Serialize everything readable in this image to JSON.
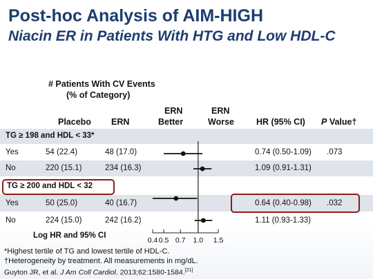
{
  "slide": {
    "title": "Post-hoc Analysis of AIM-HIGH",
    "subtitle": "Niacin ER in Patients With HTG and Low HDL-C"
  },
  "table": {
    "events_header_line1": "# Patients With CV Events",
    "events_header_line2": "(% of Category)",
    "col_placebo": "Placebo",
    "col_ern": "ERN",
    "col_ern_better_1": "ERN",
    "col_ern_better_2": "Better",
    "col_ern_worse_1": "ERN",
    "col_ern_worse_2": "Worse",
    "col_hr": "HR (95% CI)",
    "col_p_prefix": "P",
    "col_p_suffix": " Value†"
  },
  "groups": [
    {
      "label": "TG ≥ 198 and HDL < 33*",
      "rows": [
        {
          "label": "Yes",
          "placebo": "54 (22.4)",
          "ern": "48 (17.0)",
          "hr_text": "0.74 (0.50-1.09)",
          "p": ".073"
        },
        {
          "label": "No",
          "placebo": "220 (15.1)",
          "ern": "234 (16.3)",
          "hr_text": "1.09 (0.91-1.31)",
          "p": ""
        }
      ]
    },
    {
      "label": "TG ≥ 200 and HDL < 32",
      "rows": [
        {
          "label": "Yes",
          "placebo": "50 (25.0)",
          "ern": "40 (16.7)",
          "hr_text": "0.64 (0.40-0.98)",
          "p": ".032"
        },
        {
          "label": "No",
          "placebo": "224 (15.0)",
          "ern": "242 (16.2)",
          "hr_text": "1.11 (0.93-1.33)",
          "p": ""
        }
      ]
    }
  ],
  "chart_data": {
    "type": "forest",
    "xlabel": "Log HR and 95% CI",
    "x_scale": "log",
    "xlim": [
      0.4,
      1.5
    ],
    "reference_line": 1.0,
    "ticks": [
      0.4,
      0.5,
      0.7,
      1.0,
      1.5
    ],
    "tick_labels": [
      "0.4",
      "0.5",
      "0.7",
      "1.0",
      "1.5"
    ],
    "points": [
      {
        "group": "TG ≥ 198 and HDL < 33*",
        "subgroup": "Yes",
        "hr": 0.74,
        "ci": [
          0.5,
          1.09
        ]
      },
      {
        "group": "TG ≥ 198 and HDL < 33*",
        "subgroup": "No",
        "hr": 1.09,
        "ci": [
          0.91,
          1.31
        ]
      },
      {
        "group": "TG ≥ 200 and HDL < 32",
        "subgroup": "Yes",
        "hr": 0.64,
        "ci": [
          0.4,
          0.98
        ]
      },
      {
        "group": "TG ≥ 200 and HDL < 32",
        "subgroup": "No",
        "hr": 1.11,
        "ci": [
          0.93,
          1.33
        ]
      }
    ]
  },
  "footnotes": {
    "note1": "*Highest tertile of TG and lowest tertile of  HDL-C.",
    "note2": "†Heterogeneity by treatment.  All measurements in mg/dL.",
    "cite_authors": "Guyton JR, et al. ",
    "cite_journal": "J Am Coll Cardiol",
    "cite_rest": ". 2013;62:1580-1584.",
    "cite_ref": "[21]"
  },
  "colors": {
    "title": "#1d3d70",
    "band": "#dfe3ea",
    "highlight": "#8c1b1b"
  }
}
